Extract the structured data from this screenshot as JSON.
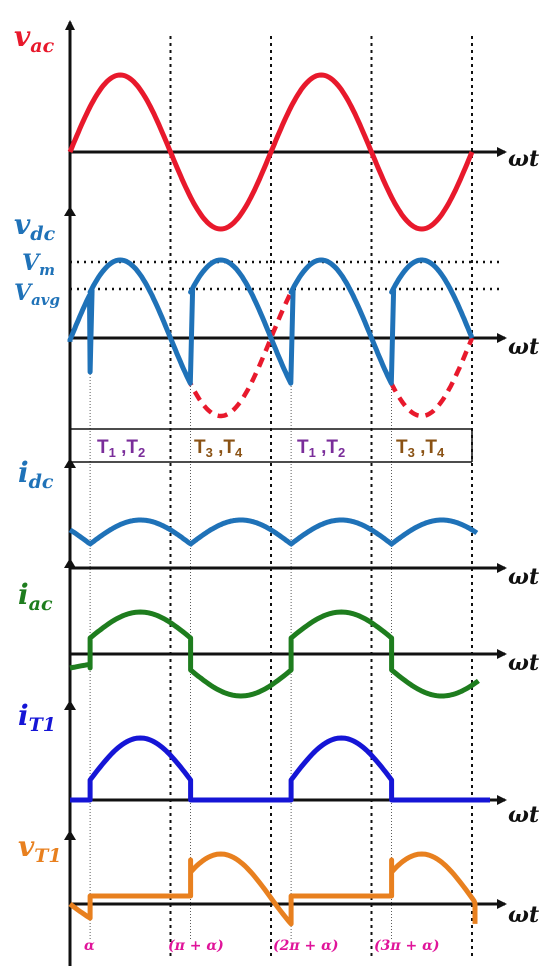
{
  "axis_label": "ωt",
  "panels": [
    {
      "sym": "v",
      "sub": "ac",
      "color": "#e8192c"
    },
    {
      "sym": "v",
      "sub": "dc",
      "color": "#1f72b8"
    },
    {
      "sym": "i",
      "sub": "dc",
      "color": "#1f72b8"
    },
    {
      "sym": "i",
      "sub": "ac",
      "color": "#1e7d1e"
    },
    {
      "sym": "i",
      "sub": "T1",
      "color": "#1515d6"
    },
    {
      "sym": "v",
      "sub": "T1",
      "color": "#e8801f"
    }
  ],
  "levels": [
    {
      "sym": "V",
      "sub": "m"
    },
    {
      "sym": "V",
      "sub": "avg"
    }
  ],
  "thyristor_row": [
    {
      "a": "T",
      "a_sub": "1",
      "b": "T",
      "b_sub": "2",
      "color": "#7a2d9a"
    },
    {
      "a": "T",
      "a_sub": "3",
      "b": "T",
      "b_sub": "4",
      "color": "#8a5214"
    },
    {
      "a": "T",
      "a_sub": "1",
      "b": "T",
      "b_sub": "2",
      "color": "#7a2d9a"
    },
    {
      "a": "T",
      "a_sub": "3",
      "b": "T",
      "b_sub": "4",
      "color": "#8a5214"
    }
  ],
  "angle_labels": [
    "α",
    "(π + α)",
    "(2π + α)",
    "(3π + α)"
  ],
  "colors": {
    "vac": "#e8192c",
    "vdc": "#1f72b8",
    "idc": "#1f72b8",
    "iac": "#1e7d1e",
    "iT1": "#1515d6",
    "vT1": "#e8801f",
    "axis": "#111111"
  }
}
